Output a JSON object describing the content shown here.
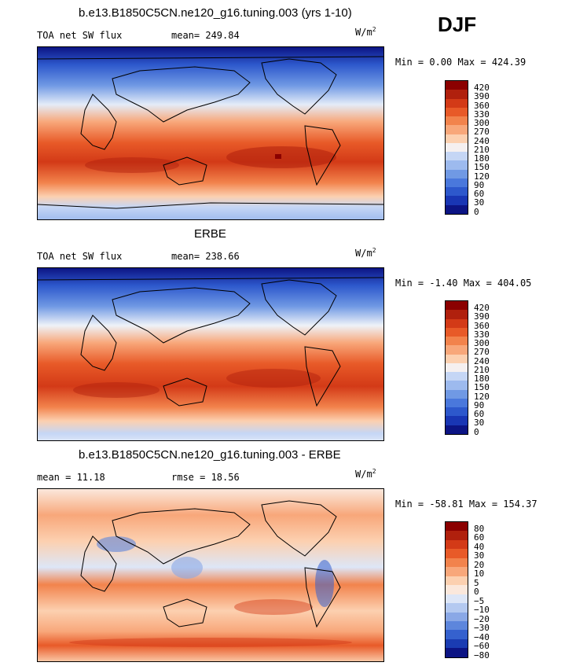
{
  "season": "DJF",
  "units": "W/m",
  "units_exp": "2",
  "panels": [
    {
      "title": "b.e13.B1850C5CN.ne120_g16.tuning.003 (yrs 1-10)",
      "left_label": "TOA net SW flux",
      "stat": "mean= 249.84",
      "minmax": "Min =   0.00 Max = 424.39",
      "levels": [
        "420",
        "390",
        "360",
        "330",
        "300",
        "270",
        "240",
        "210",
        "180",
        "150",
        "120",
        "90",
        "60",
        "30",
        "0"
      ],
      "colors": [
        "#8b0000",
        "#b0200d",
        "#d33a17",
        "#e85a28",
        "#f2834c",
        "#f8a77a",
        "#fcd0b0",
        "#f5f0f0",
        "#c5d6f5",
        "#9dbaee",
        "#7099e4",
        "#4a78dc",
        "#2d58cc",
        "#1936b4",
        "#0c1484"
      ]
    },
    {
      "title": "ERBE",
      "left_label": "TOA net SW flux",
      "stat": "mean= 238.66",
      "minmax": "Min =  -1.40 Max = 404.05",
      "levels": [
        "420",
        "390",
        "360",
        "330",
        "300",
        "270",
        "240",
        "210",
        "180",
        "150",
        "120",
        "90",
        "60",
        "30",
        "0"
      ],
      "colors": [
        "#8b0000",
        "#b0200d",
        "#d33a17",
        "#e85a28",
        "#f2834c",
        "#f8a77a",
        "#fcd0b0",
        "#f5f0f0",
        "#c5d6f5",
        "#9dbaee",
        "#7099e4",
        "#4a78dc",
        "#2d58cc",
        "#1936b4",
        "#0c1484"
      ]
    },
    {
      "title": "b.e13.B1850C5CN.ne120_g16.tuning.003 - ERBE",
      "left_label": "mean =   11.18",
      "stat": "rmse =   18.56",
      "minmax": "Min = -58.81 Max = 154.37",
      "levels": [
        "80",
        "60",
        "40",
        "30",
        "20",
        "10",
        "5",
        "0",
        "−5",
        "−10",
        "−20",
        "−30",
        "−40",
        "−60",
        "−80"
      ],
      "colors": [
        "#8b0000",
        "#b0200d",
        "#d33a17",
        "#e85a28",
        "#f2834c",
        "#f8a77a",
        "#fcd0b0",
        "#fbe8dc",
        "#dde6f7",
        "#b4c9f0",
        "#8aa8e6",
        "#5d86dc",
        "#3561ce",
        "#1a3cb2",
        "#0c1484"
      ]
    }
  ]
}
